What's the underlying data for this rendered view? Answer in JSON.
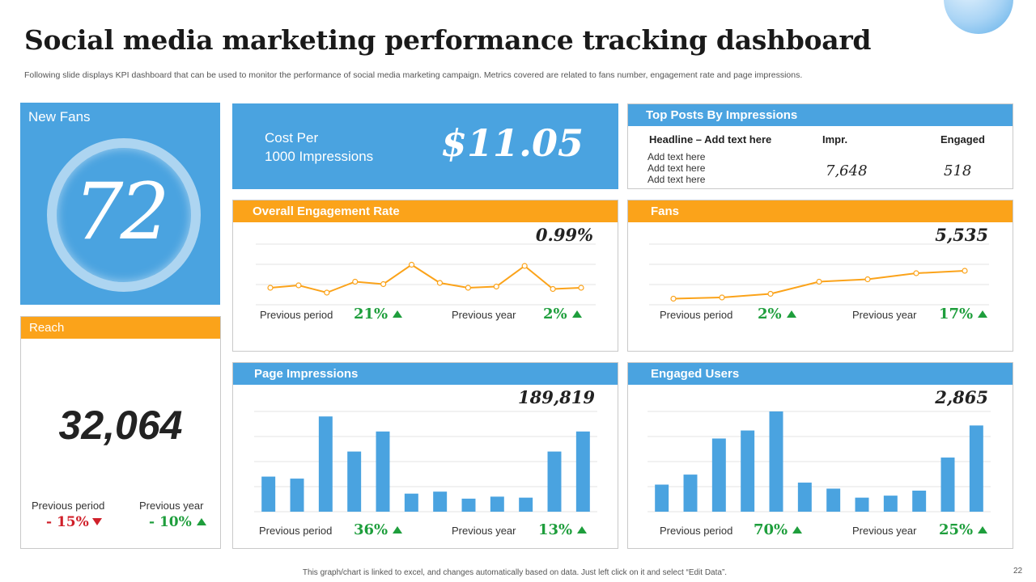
{
  "title": "Social media marketing performance tracking dashboard",
  "subtitle": "Following slide displays KPI dashboard that can be used to monitor the performance of social media marketing campaign. Metrics covered are related to fans number, engagement rate and page impressions.",
  "colors": {
    "blue": "#4aa3e0",
    "orange": "#fba31a",
    "green": "#1e9e3c",
    "red": "#d0202a"
  },
  "new_fans": {
    "label": "New Fans",
    "value": "72"
  },
  "reach": {
    "label": "Reach",
    "value": "32,064",
    "prev_period_label": "Previous period",
    "prev_period_value": "- 15%",
    "prev_year_label": "Previous year",
    "prev_year_value": "- 10%"
  },
  "cpm": {
    "label_line1": "Cost Per",
    "label_line2": "1000 Impressions",
    "value": "$11.05"
  },
  "top_posts": {
    "label": "Top Posts By Impressions",
    "col_headline": "Headline – Add text here",
    "col_impr": "Impr.",
    "col_engaged": "Engaged",
    "rows": [
      "Add text here",
      "Add text here",
      "Add text here"
    ],
    "impr_value": "7,648",
    "engaged_value": "518"
  },
  "engagement": {
    "label": "Overall Engagement Rate",
    "value": "0.99%",
    "prev_period_label": "Previous period",
    "prev_period_value": "21%",
    "prev_year_label": "Previous year",
    "prev_year_value": "2%"
  },
  "fans": {
    "label": "Fans",
    "value": "5,535",
    "prev_period_label": "Previous period",
    "prev_period_value": "2%",
    "prev_year_label": "Previous year",
    "prev_year_value": "17%"
  },
  "impressions": {
    "label": "Page Impressions",
    "value": "189,819",
    "prev_period_label": "Previous period",
    "prev_period_value": "36%",
    "prev_year_label": "Previous year",
    "prev_year_value": "13%"
  },
  "engaged_users": {
    "label": "Engaged Users",
    "value": "2,865",
    "prev_period_label": "Previous period",
    "prev_period_value": "70%",
    "prev_year_label": "Previous year",
    "prev_year_value": "25%"
  },
  "chart_data": [
    {
      "name": "engagement",
      "type": "line",
      "ylim": [
        0,
        5
      ],
      "values": [
        1.4,
        1.6,
        1.0,
        1.9,
        1.7,
        3.3,
        1.8,
        1.4,
        1.5,
        3.2,
        1.3,
        1.4
      ]
    },
    {
      "name": "fans",
      "type": "line",
      "ylim": [
        0,
        5
      ],
      "values": [
        0.5,
        0.6,
        0.9,
        1.9,
        2.1,
        2.6,
        2.8
      ]
    },
    {
      "name": "impressions",
      "type": "bar",
      "ylim": [
        0,
        10
      ],
      "values": [
        3.5,
        3.3,
        9.5,
        6.0,
        8.0,
        1.8,
        2.0,
        1.3,
        1.5,
        1.4,
        6.0,
        8.0
      ]
    },
    {
      "name": "engaged_users",
      "type": "bar",
      "ylim": [
        0,
        10
      ],
      "values": [
        2.7,
        3.7,
        7.3,
        8.1,
        10.0,
        2.9,
        2.3,
        1.4,
        1.6,
        2.1,
        5.4,
        8.6
      ]
    }
  ]
}
